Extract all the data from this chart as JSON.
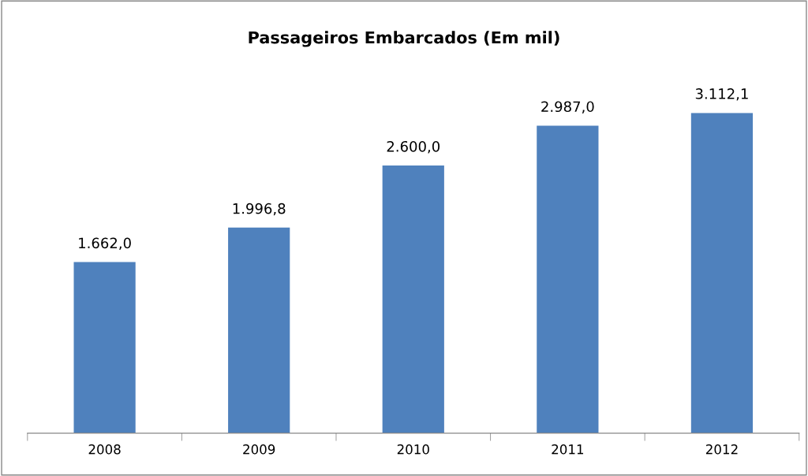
{
  "chart_data": {
    "type": "bar",
    "title": "Passageiros Embarcados (Em mil)",
    "categories": [
      "2008",
      "2009",
      "2010",
      "2011",
      "2012"
    ],
    "values": [
      1662.0,
      1996.8,
      2600.0,
      2987.0,
      3112.1
    ],
    "value_labels": [
      "1.662,0",
      "1.996,8",
      "2.600,0",
      "2.987,0",
      "3.112,1"
    ],
    "color": "#4f81bd",
    "grid": false,
    "legend": false,
    "tick_labels": "x"
  }
}
